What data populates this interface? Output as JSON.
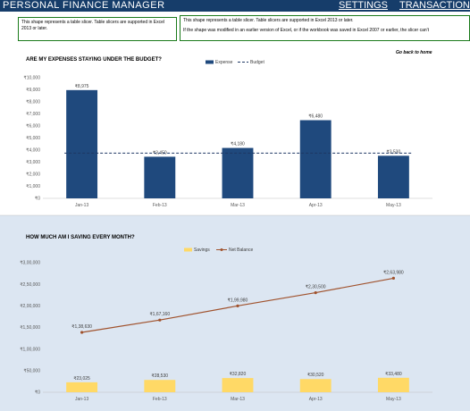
{
  "header": {
    "title": "PERSONAL FINANCE MANAGER",
    "nav": [
      {
        "label": "SETTINGS"
      },
      {
        "label": "TRANSACTIONS"
      }
    ]
  },
  "slicers": [
    {
      "lines": [
        "This shape represents a table slicer. Table slicers are supported in Excel 2013 or later."
      ]
    },
    {
      "lines": [
        "This shape represents a table slicer. Table slicers are supported in Excel 2013 or later.",
        "If the shape was modified in an earlier version of Excel, or if the workbook was saved in Excel 2007 or earlier, the slicer can't"
      ]
    }
  ],
  "refresh_note": "Go back to home",
  "colors": {
    "header_bg": "#163D6A",
    "expense_bar": "#1F497D",
    "budget_line": "#1F3864",
    "savings_bar": "#FFD966",
    "net_balance_line": "#A0522D",
    "bottom_panel_bg": "#DCE6F2"
  },
  "chart_data": [
    {
      "type": "bar",
      "title": "ARE MY EXPENSES STAYING UNDER THE BUDGET?",
      "categories": [
        "Jan-13",
        "Feb-13",
        "Mar-13",
        "Apr-13",
        "May-13"
      ],
      "series": [
        {
          "name": "Expense",
          "type": "bar",
          "values": [
            8975,
            3450,
            4180,
            6480,
            3530
          ],
          "labels": [
            "₹8,975",
            "₹3,450",
            "₹4,180",
            "₹6,480",
            "₹3,530"
          ]
        },
        {
          "name": "Budget",
          "type": "line-dashed",
          "values": [
            3750,
            3750,
            3750,
            3750,
            3750
          ]
        }
      ],
      "ylim": [
        0,
        10000
      ],
      "yticks": [
        0,
        1000,
        2000,
        3000,
        4000,
        5000,
        6000,
        7000,
        8000,
        9000,
        10000
      ],
      "ytick_labels": [
        "₹0",
        "₹1,000",
        "₹2,000",
        "₹3,000",
        "₹4,000",
        "₹5,000",
        "₹6,000",
        "₹7,000",
        "₹8,000",
        "₹9,000",
        "₹10,000"
      ],
      "legend": "top",
      "grid": false
    },
    {
      "type": "bar",
      "title": "HOW MUCH AM I SAVING EVERY MONTH?",
      "categories": [
        "Jan-13",
        "Feb-13",
        "Mar-13",
        "Apr-13",
        "May-13"
      ],
      "series": [
        {
          "name": "Savings",
          "type": "bar",
          "values": [
            23025,
            28530,
            32820,
            30520,
            33480
          ],
          "labels": [
            "₹23,025",
            "₹28,530",
            "₹32,820",
            "₹30,520",
            "₹33,480"
          ]
        },
        {
          "name": "Net Balance",
          "type": "line",
          "values": [
            138630,
            167160,
            199980,
            230500,
            263980
          ],
          "labels": [
            "₹1,38,630",
            "₹1,67,160",
            "₹1,99,980",
            "₹2,30,500",
            "₹2,63,980"
          ]
        }
      ],
      "ylim": [
        0,
        300000
      ],
      "yticks": [
        0,
        50000,
        100000,
        150000,
        200000,
        250000,
        300000
      ],
      "ytick_labels": [
        "₹0",
        "₹50,000",
        "₹1,00,000",
        "₹1,50,000",
        "₹2,00,000",
        "₹2,50,000",
        "₹3,00,000"
      ],
      "legend": "top",
      "grid": false
    }
  ]
}
